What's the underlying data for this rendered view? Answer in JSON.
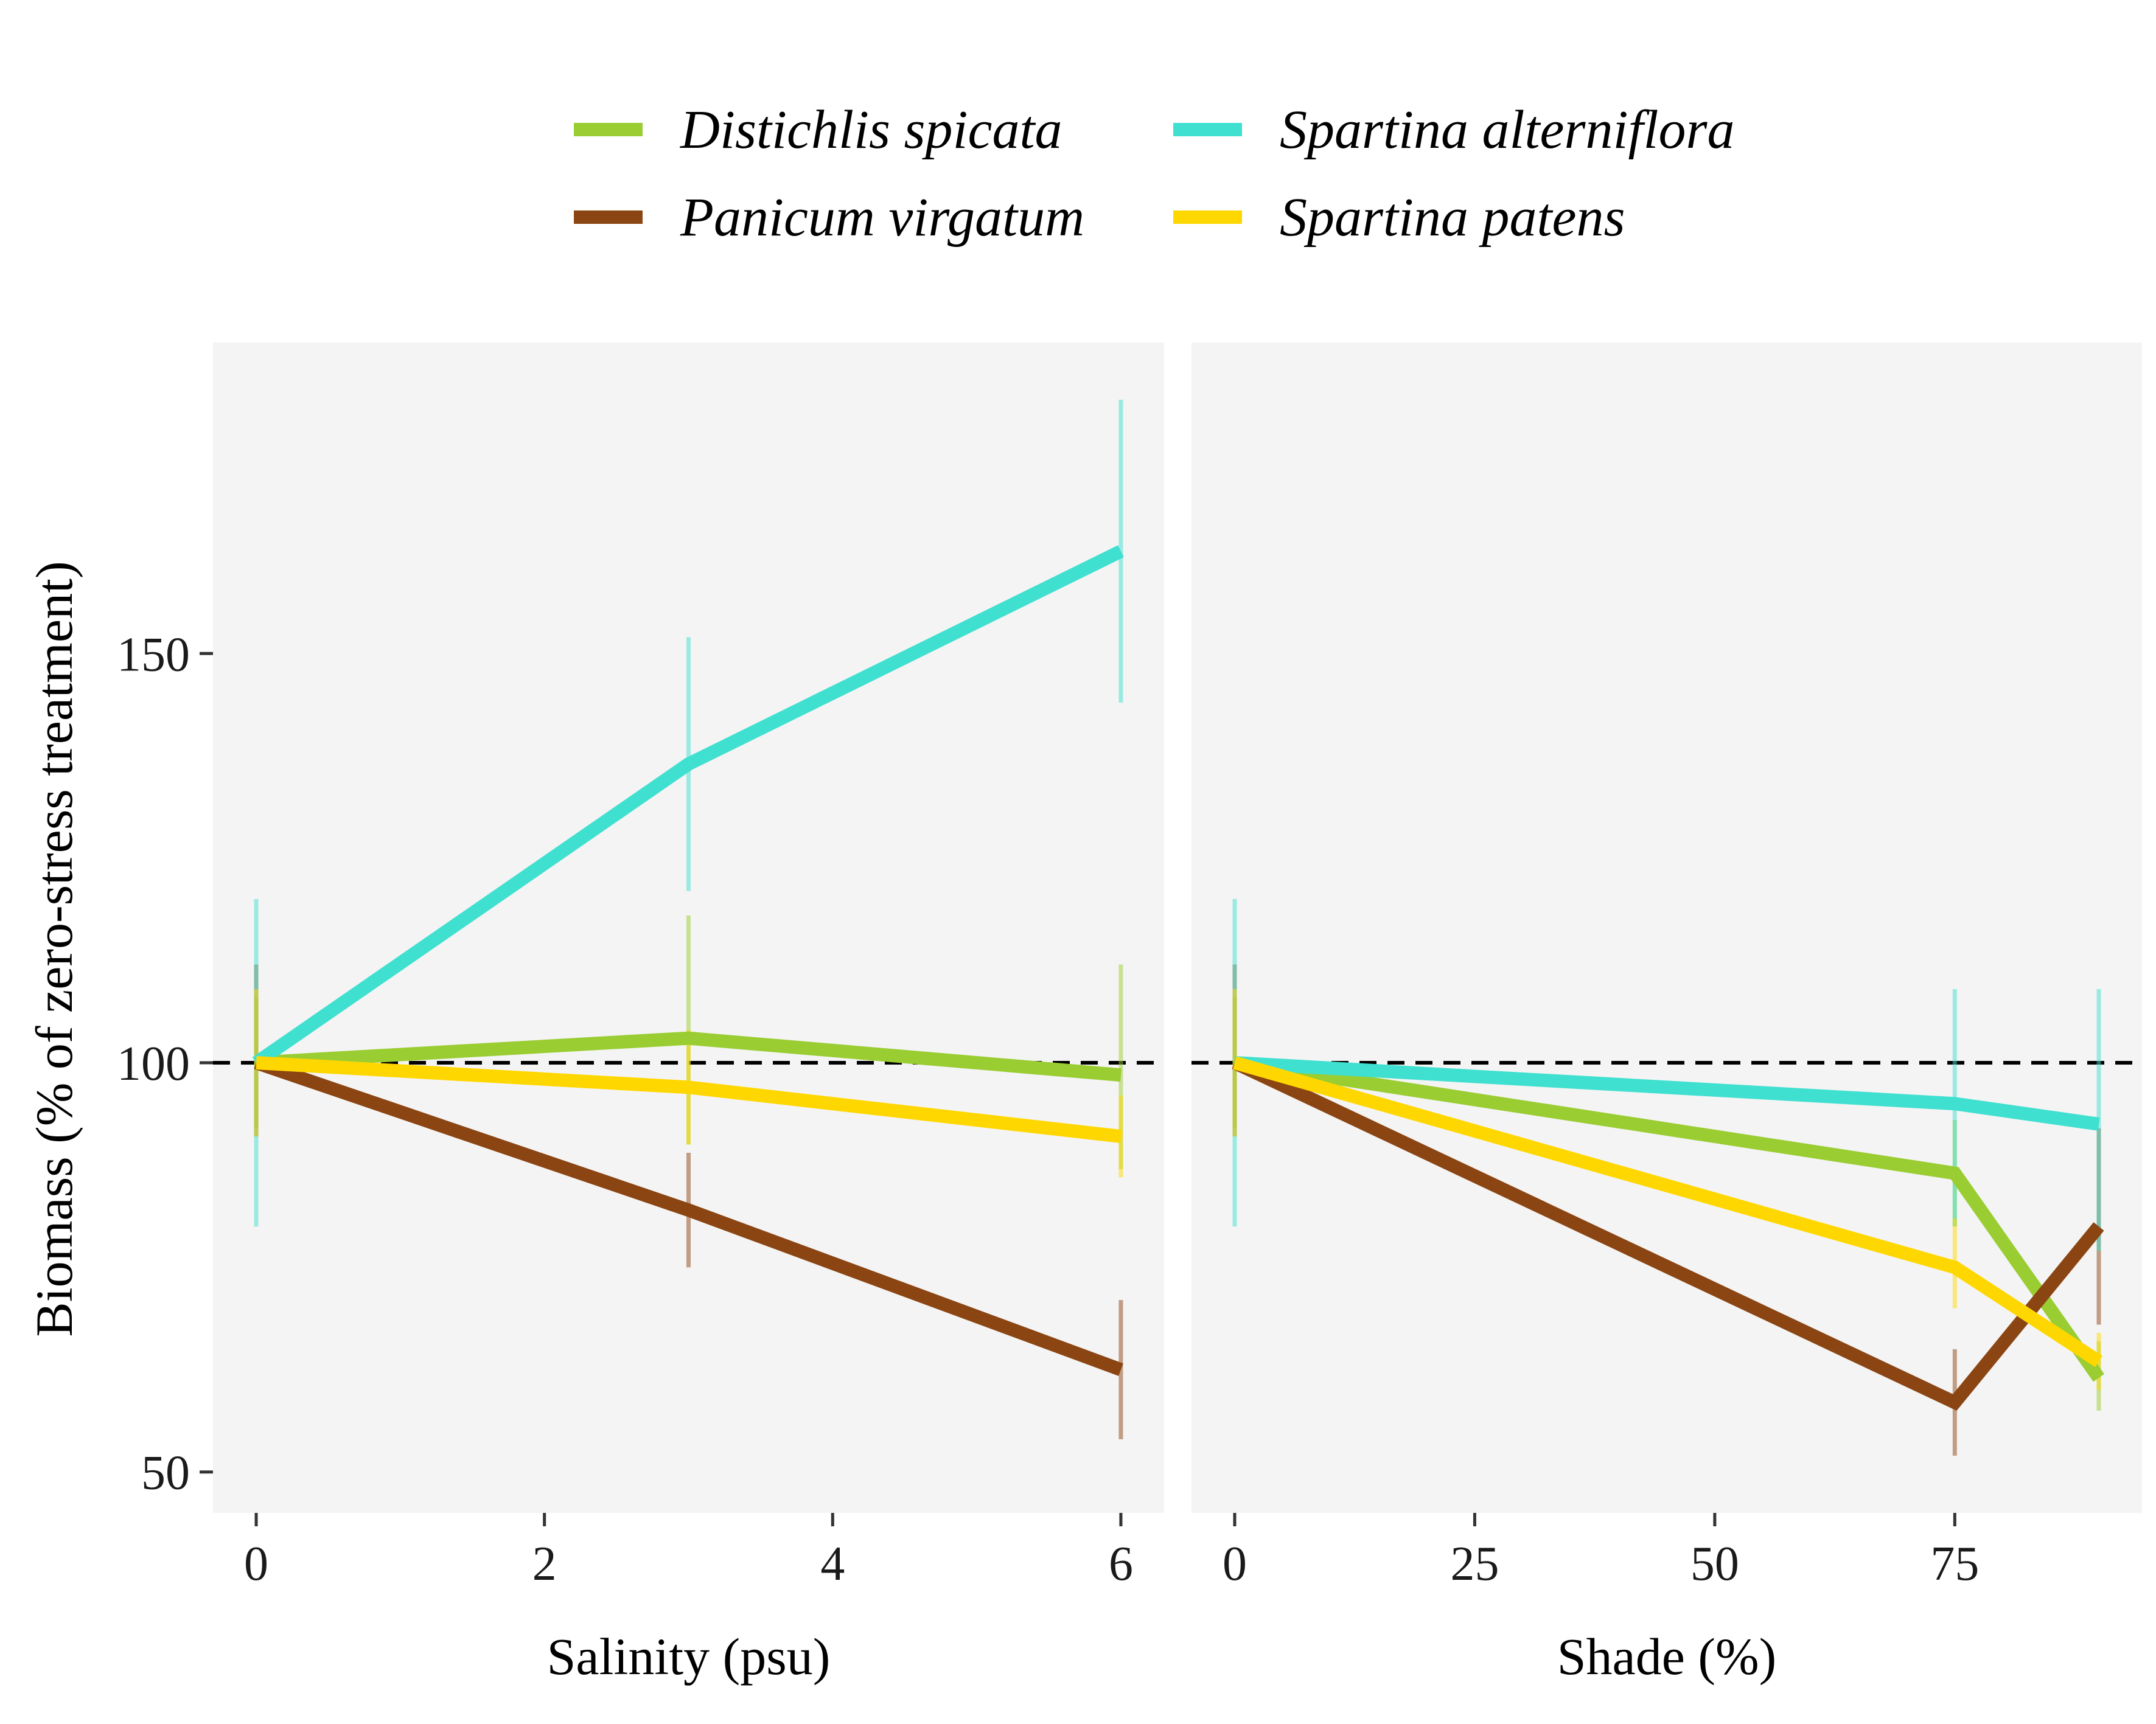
{
  "chart_data": {
    "type": "line",
    "ylabel": "Biomass (% of zero-stress treatment)",
    "ylim": [
      45,
      188
    ],
    "yticks": [
      50,
      100,
      150
    ],
    "reference_line": 100,
    "grid": false,
    "legend_position": "top",
    "legend": [
      {
        "name": "Distichlis spicata",
        "color": "#9ACD32"
      },
      {
        "name": "Panicum virgatum",
        "color": "#8B4513"
      },
      {
        "name": "Spartina alterniflora",
        "color": "#40E0D0"
      },
      {
        "name": "Spartina patens",
        "color": "#FFD700"
      }
    ],
    "panels": [
      {
        "xlabel": "Salinity (psu)",
        "xlim": [
          -0.3,
          6.3
        ],
        "xticks": [
          0,
          2,
          4,
          6
        ],
        "series": [
          {
            "name": "Distichlis spicata",
            "color": "#9ACD32",
            "x": [
              0,
              3,
              6
            ],
            "y": [
              100,
              103,
              98.5
            ],
            "err_low": [
              92,
              90,
              87
            ],
            "err_high": [
              108,
              118,
              112
            ]
          },
          {
            "name": "Panicum virgatum",
            "color": "#8B4513",
            "x": [
              0,
              3,
              6
            ],
            "y": [
              100,
              82,
              62.5
            ],
            "err_low": [
              91,
              75,
              54
            ],
            "err_high": [
              112,
              89,
              71
            ]
          },
          {
            "name": "Spartina alterniflora",
            "color": "#40E0D0",
            "x": [
              0,
              3,
              6
            ],
            "y": [
              100,
              136.5,
              162.5
            ],
            "err_low": [
              80,
              121,
              144
            ],
            "err_high": [
              120,
              152,
              181
            ]
          },
          {
            "name": "Spartina patens",
            "color": "#FFD700",
            "x": [
              0,
              3,
              6
            ],
            "y": [
              100,
              97,
              91
            ],
            "err_low": [
              91,
              90,
              86
            ],
            "err_high": [
              109,
              104,
              96
            ]
          }
        ]
      },
      {
        "xlabel": "Shade (%)",
        "xlim": [
          -4.5,
          94.5
        ],
        "xticks": [
          0,
          25,
          50,
          75
        ],
        "series": [
          {
            "name": "Distichlis spicata",
            "color": "#9ACD32",
            "x": [
              0,
              75,
              90
            ],
            "y": [
              100,
              86.5,
              61.5
            ],
            "err_low": [
              92,
              80,
              57.5
            ],
            "err_high": [
              108,
              93,
              66
            ]
          },
          {
            "name": "Panicum virgatum",
            "color": "#8B4513",
            "x": [
              0,
              75,
              90
            ],
            "y": [
              100,
              58.5,
              80
            ],
            "err_low": [
              91,
              52,
              68
            ],
            "err_high": [
              112,
              65,
              92
            ]
          },
          {
            "name": "Spartina alterniflora",
            "color": "#40E0D0",
            "x": [
              0,
              75,
              90
            ],
            "y": [
              100,
              95,
              92.5
            ],
            "err_low": [
              80,
              80,
              77
            ],
            "err_high": [
              120,
              109,
              109
            ]
          },
          {
            "name": "Spartina patens",
            "color": "#FFD700",
            "x": [
              0,
              75,
              90
            ],
            "y": [
              100,
              75,
              63.5
            ],
            "err_low": [
              91,
              70,
              60
            ],
            "err_high": [
              109,
              81,
              67
            ]
          }
        ]
      }
    ]
  }
}
